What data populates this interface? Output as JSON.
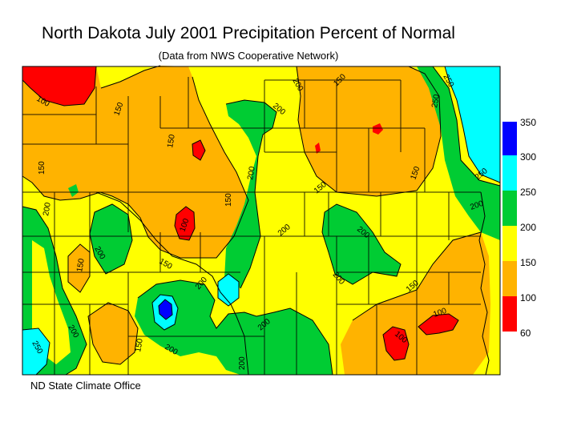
{
  "title": "North Dakota July 2001 Precipitation Percent of Normal",
  "subtitle": "(Data from NWS Cooperative Network)",
  "credit": "ND State Climate Office",
  "legend": {
    "ticks": [
      "350",
      "300",
      "250",
      "200",
      "150",
      "100",
      "60"
    ],
    "bands": [
      {
        "range": "300-350",
        "color": "#0000ff"
      },
      {
        "range": "250-300",
        "color": "#00ffff"
      },
      {
        "range": "200-250",
        "color": "#00cc33"
      },
      {
        "range": "150-200",
        "color": "#ffff00"
      },
      {
        "range": "100-150",
        "color": "#ffb300"
      },
      {
        "range": "60-100",
        "color": "#ff0000"
      }
    ]
  },
  "contour_labels": [
    "100",
    "150",
    "150",
    "150",
    "150",
    "150",
    "150",
    "150",
    "150",
    "150",
    "150",
    "200",
    "200",
    "200",
    "200",
    "200",
    "200",
    "200",
    "200",
    "200",
    "200",
    "200",
    "200",
    "200",
    "200",
    "250",
    "250",
    "250",
    "250",
    "100",
    "100",
    "100",
    "150"
  ]
}
